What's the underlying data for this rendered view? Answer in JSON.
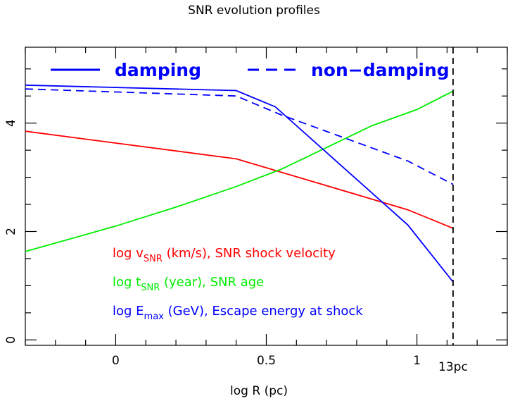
{
  "chart_data": {
    "type": "line",
    "title": "SNR evolution profiles",
    "xlabel": "log R (pc)",
    "ylabel": "",
    "xlim": [
      -0.3,
      1.3
    ],
    "ylim": [
      -0.1,
      5.4
    ],
    "x_ticks": [
      0,
      0.5,
      1
    ],
    "x_tick_labels": [
      "0",
      "0.5",
      "1"
    ],
    "y_ticks": [
      0,
      2,
      4
    ],
    "y_tick_labels": [
      "0",
      "2",
      "4"
    ],
    "x_minor_step": 0.1,
    "y_minor_step": 0.5,
    "grid": false,
    "legend_position": "top",
    "legend": [
      {
        "label": "damping",
        "style": "solid",
        "color": "#0000ff"
      },
      {
        "label": "non−damping",
        "style": "dashed",
        "color": "#0000ff"
      }
    ],
    "annotations": [
      {
        "color": "#ff0000",
        "parts": [
          {
            "t": "log v"
          },
          {
            "t": "SNR",
            "sub": true
          },
          {
            "t": " (km/s), SNR shock velocity"
          }
        ]
      },
      {
        "color": "#00ee00",
        "parts": [
          {
            "t": "log t"
          },
          {
            "t": "SNR",
            "sub": true
          },
          {
            "t": " (year), SNR age"
          }
        ]
      },
      {
        "color": "#0000ff",
        "parts": [
          {
            "t": "log E"
          },
          {
            "t": "max",
            "sub": true
          },
          {
            "t": " (GeV), Escape energy at shock"
          }
        ]
      }
    ],
    "vline": {
      "x": 1.12,
      "label": "13pc",
      "color": "#000000"
    },
    "series": [
      {
        "id": "v-snr",
        "color": "#ff0000",
        "style": "solid",
        "x": [
          -0.3,
          0.4,
          0.97,
          1.12
        ],
        "y": [
          3.85,
          3.34,
          2.4,
          2.06
        ]
      },
      {
        "id": "t-snr",
        "color": "#00ee00",
        "style": "solid",
        "x": [
          -0.3,
          0.0,
          0.2,
          0.4,
          0.55,
          0.7,
          0.85,
          1.0,
          1.12
        ],
        "y": [
          1.63,
          2.1,
          2.45,
          2.83,
          3.15,
          3.55,
          3.95,
          4.25,
          4.59
        ]
      },
      {
        "id": "e-max-damping",
        "color": "#0000ff",
        "style": "solid",
        "x": [
          -0.3,
          0.4,
          0.53,
          0.97,
          1.12
        ],
        "y": [
          4.7,
          4.6,
          4.3,
          2.12,
          1.07
        ]
      },
      {
        "id": "e-max-non-damping",
        "color": "#0000ff",
        "style": "dashed",
        "x": [
          -0.3,
          0.4,
          0.55,
          0.97,
          1.12
        ],
        "y": [
          4.63,
          4.5,
          4.15,
          3.3,
          2.87
        ]
      }
    ]
  }
}
